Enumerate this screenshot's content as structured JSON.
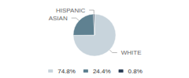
{
  "chart_data": {
    "type": "pie",
    "categories": [
      "WHITE",
      "ASIAN",
      "HISPANIC"
    ],
    "values": [
      74.8,
      24.4,
      0.8
    ],
    "value_labels": [
      "74.8%",
      "24.4%",
      "0.8%"
    ],
    "colors": [
      "#c8d4dc",
      "#5f8191",
      "#2e4057"
    ],
    "legend": "bottom"
  }
}
